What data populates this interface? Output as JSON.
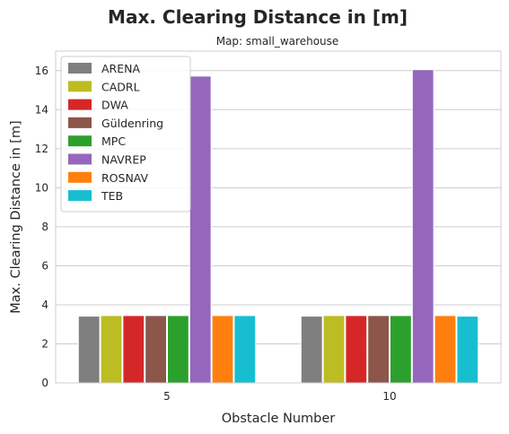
{
  "chart_data": {
    "type": "bar",
    "title": "Max. Clearing Distance in [m]",
    "subtitle": "Map: small_warehouse",
    "xlabel": "Obstacle Number",
    "ylabel": "Max. Clearing Distance in [m]",
    "categories": [
      "5",
      "10"
    ],
    "ylim": [
      0,
      17
    ],
    "yticks": [
      0,
      2,
      4,
      6,
      8,
      10,
      12,
      14,
      16
    ],
    "grid": "horizontal",
    "legend_position": "top-left",
    "series": [
      {
        "name": "ARENA",
        "color": "#7f7f7f",
        "values": [
          3.42,
          3.42
        ]
      },
      {
        "name": "CADRL",
        "color": "#bcbd22",
        "values": [
          3.45,
          3.45
        ]
      },
      {
        "name": "DWA",
        "color": "#d62728",
        "values": [
          3.45,
          3.45
        ]
      },
      {
        "name": "Güldenring",
        "color": "#8c564b",
        "values": [
          3.45,
          3.45
        ]
      },
      {
        "name": "MPC",
        "color": "#2ca02c",
        "values": [
          3.45,
          3.45
        ]
      },
      {
        "name": "NAVREP",
        "color": "#9467bd",
        "values": [
          15.72,
          16.05
        ]
      },
      {
        "name": "ROSNAV",
        "color": "#ff7f0e",
        "values": [
          3.45,
          3.45
        ]
      },
      {
        "name": "TEB",
        "color": "#17becf",
        "values": [
          3.45,
          3.42
        ]
      }
    ]
  }
}
